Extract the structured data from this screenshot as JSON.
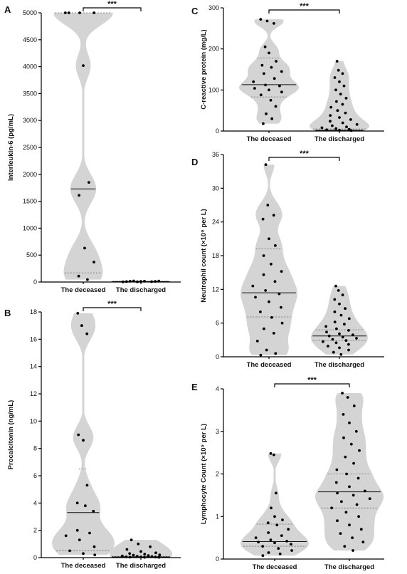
{
  "chart_data": [
    {
      "panel": "A",
      "type": "violin",
      "ylabel": "Interleukin-6 (pg/mL)",
      "categories": [
        "The deceased",
        "The discharged"
      ],
      "ylim": [
        0,
        5000
      ],
      "yticks": [
        0,
        500,
        1000,
        1500,
        2000,
        2500,
        3000,
        3500,
        4000,
        4500,
        5000
      ],
      "significance": "***",
      "series": [
        {
          "category": "The deceased",
          "points": [
            5000,
            5000,
            5000,
            5000,
            4020,
            1850,
            1610,
            630,
            370,
            110,
            45
          ],
          "median": 1730,
          "q1": 170,
          "q3": 5000
        },
        {
          "category": "The discharged",
          "points": [
            2,
            4,
            6,
            8,
            10,
            12,
            14,
            16,
            18,
            20
          ],
          "median": 8,
          "q1": 4,
          "q3": 14
        }
      ]
    },
    {
      "panel": "B",
      "type": "violin",
      "ylabel": "Procalcitonin (ng/mL)",
      "categories": [
        "The deceased",
        "The discharged"
      ],
      "ylim": [
        0,
        18
      ],
      "yticks": [
        0,
        2,
        4,
        6,
        8,
        10,
        12,
        14,
        16,
        18
      ],
      "significance": "***",
      "series": [
        {
          "category": "The deceased",
          "points": [
            17.9,
            17.0,
            16.4,
            9.0,
            8.6,
            5.3,
            4.0,
            3.8,
            3.4,
            2.0,
            1.8,
            1.6,
            1.3,
            0.8,
            0.5,
            0.3,
            0.2
          ],
          "median": 3.3,
          "q1": 0.5,
          "q3": 6.5
        },
        {
          "category": "The discharged",
          "points": [
            1.3,
            1.0,
            0.8,
            0.6,
            0.45,
            0.35,
            0.3,
            0.25,
            0.2,
            0.18,
            0.15,
            0.12,
            0.1,
            0.08,
            0.06,
            0.05,
            0.04,
            0.03,
            0.02,
            0.02
          ],
          "median": 0.05,
          "q1": 0.03,
          "q3": 0.09
        }
      ]
    },
    {
      "panel": "C",
      "type": "violin",
      "ylabel": "C-reactive protein (mg/L)",
      "categories": [
        "The deceased",
        "The discharged"
      ],
      "ylim": [
        0,
        300
      ],
      "yticks": [
        0,
        100,
        200,
        300
      ],
      "significance": "***",
      "series": [
        {
          "category": "The deceased",
          "points": [
            272,
            268,
            262,
            205,
            190,
            170,
            160,
            155,
            145,
            140,
            128,
            120,
            112,
            110,
            104,
            100,
            95,
            88,
            75,
            60,
            42,
            30,
            18
          ],
          "median": 113,
          "q1": 83,
          "q3": 178
        },
        {
          "category": "The discharged",
          "points": [
            170,
            148,
            140,
            130,
            120,
            110,
            100,
            90,
            80,
            72,
            65,
            58,
            50,
            44,
            38,
            33,
            28,
            24,
            20,
            16,
            13,
            10,
            8,
            6,
            4,
            3,
            2,
            1
          ],
          "median": 2,
          "q1": 1,
          "q3": 5
        }
      ]
    },
    {
      "panel": "D",
      "type": "violin",
      "ylabel": "Neutrophil count (×10⁹ per L)",
      "categories": [
        "The deceased",
        "The discharged"
      ],
      "ylim": [
        0,
        36
      ],
      "yticks": [
        0,
        6,
        12,
        18,
        24,
        30,
        36
      ],
      "significance": "***",
      "series": [
        {
          "category": "The deceased",
          "points": [
            34.2,
            27.0,
            25.2,
            24.5,
            21.0,
            19.8,
            18.0,
            16.5,
            15.2,
            14.6,
            13.4,
            12.6,
            11.8,
            11.2,
            10.6,
            9.8,
            8.8,
            8.0,
            7.0,
            6.0,
            5.0,
            4.2,
            2.8,
            1.2,
            0.6,
            0.3
          ],
          "median": 11.4,
          "q1": 7.1,
          "q3": 19.2
        },
        {
          "category": "The discharged",
          "points": [
            12.6,
            11.8,
            11.0,
            10.2,
            9.4,
            8.6,
            8.0,
            7.4,
            6.8,
            6.2,
            5.8,
            5.4,
            5.0,
            4.7,
            4.4,
            4.1,
            3.9,
            3.7,
            3.5,
            3.3,
            3.1,
            2.9,
            2.7,
            2.5,
            2.2,
            1.9,
            1.6,
            1.2,
            0.8,
            0.4
          ],
          "median": 3.7,
          "q1": 2.9,
          "q3": 4.8
        }
      ]
    },
    {
      "panel": "E",
      "type": "violin",
      "ylabel": "Lymphocyte Count (×10⁹ per L)",
      "categories": [
        "The deceased",
        "The discharged"
      ],
      "ylim": [
        0,
        4
      ],
      "yticks": [
        0,
        1,
        2,
        3,
        4
      ],
      "significance": "***",
      "series": [
        {
          "category": "The deceased",
          "points": [
            2.48,
            2.45,
            1.55,
            1.2,
            1.0,
            0.92,
            0.85,
            0.8,
            0.7,
            0.62,
            0.55,
            0.5,
            0.45,
            0.42,
            0.4,
            0.38,
            0.35,
            0.3,
            0.25,
            0.2,
            0.15,
            0.12,
            0.08
          ],
          "median": 0.41,
          "q1": 0.3,
          "q3": 0.82
        },
        {
          "category": "The discharged",
          "points": [
            3.9,
            3.8,
            3.6,
            3.4,
            3.2,
            3.0,
            2.85,
            2.7,
            2.55,
            2.4,
            2.25,
            2.1,
            2.0,
            1.9,
            1.8,
            1.7,
            1.6,
            1.55,
            1.5,
            1.42,
            1.35,
            1.28,
            1.2,
            1.1,
            1.0,
            0.9,
            0.8,
            0.7,
            0.6,
            0.5,
            0.4,
            0.3,
            0.2
          ],
          "median": 1.58,
          "q1": 1.2,
          "q3": 2.0
        }
      ]
    }
  ]
}
